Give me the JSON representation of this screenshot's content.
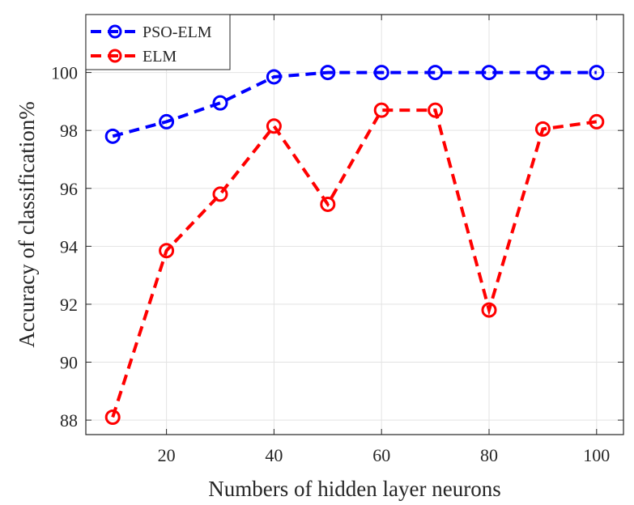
{
  "chart_data": {
    "type": "line",
    "xlabel": "Numbers of hidden layer neurons",
    "ylabel": "Accuracy of classification%",
    "xlim": [
      5,
      105
    ],
    "ylim": [
      87.5,
      102
    ],
    "xticks": [
      20,
      40,
      60,
      80,
      100
    ],
    "yticks": [
      88,
      90,
      92,
      94,
      96,
      98,
      100
    ],
    "xtick_labels": [
      "20",
      "40",
      "60",
      "80",
      "100"
    ],
    "ytick_labels": [
      "88",
      "90",
      "92",
      "94",
      "96",
      "98",
      "100"
    ],
    "grid": true,
    "legend_position": "top-left",
    "x": [
      10,
      20,
      30,
      40,
      50,
      60,
      70,
      80,
      90,
      100
    ],
    "series": [
      {
        "name": "PSO-ELM",
        "color": "#0000ff",
        "line_style": "dashed",
        "marker": "circle",
        "values": [
          97.8,
          98.3,
          98.95,
          99.85,
          100,
          100,
          100,
          100,
          100,
          100
        ]
      },
      {
        "name": "ELM",
        "color": "#ff0000",
        "line_style": "dashed",
        "marker": "circle",
        "values": [
          88.1,
          93.85,
          95.8,
          98.15,
          95.45,
          98.7,
          98.7,
          91.8,
          98.05,
          98.3
        ]
      }
    ]
  }
}
